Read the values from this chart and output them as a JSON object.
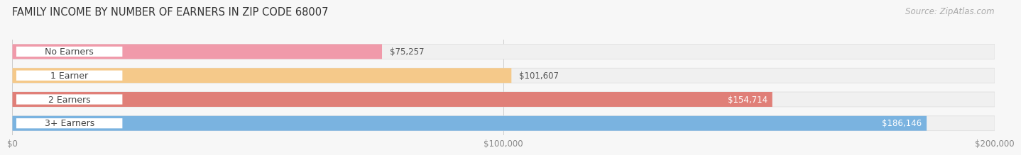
{
  "title": "FAMILY INCOME BY NUMBER OF EARNERS IN ZIP CODE 68007",
  "source": "Source: ZipAtlas.com",
  "categories": [
    "No Earners",
    "1 Earner",
    "2 Earners",
    "3+ Earners"
  ],
  "values": [
    75257,
    101607,
    154714,
    186146
  ],
  "labels": [
    "$75,257",
    "$101,607",
    "$154,714",
    "$186,146"
  ],
  "bar_colors": [
    "#f09aaa",
    "#f5c98a",
    "#e07f78",
    "#7ab3e0"
  ],
  "bar_bg_colors": [
    "#f0f0f0",
    "#f0f0f0",
    "#f0f0f0",
    "#f0f0f0"
  ],
  "label_outside_color": "#555555",
  "label_inside_color": "#ffffff",
  "label_outside_threshold": 120000,
  "xlim": [
    0,
    200000
  ],
  "xtick_values": [
    0,
    100000,
    200000
  ],
  "xtick_labels": [
    "$0",
    "$100,000",
    "$200,000"
  ],
  "background_color": "#f7f7f7",
  "title_fontsize": 10.5,
  "source_fontsize": 8.5,
  "bar_label_fontsize": 8.5,
  "category_fontsize": 9,
  "bar_height": 0.62,
  "pill_bg": "#ffffff"
}
